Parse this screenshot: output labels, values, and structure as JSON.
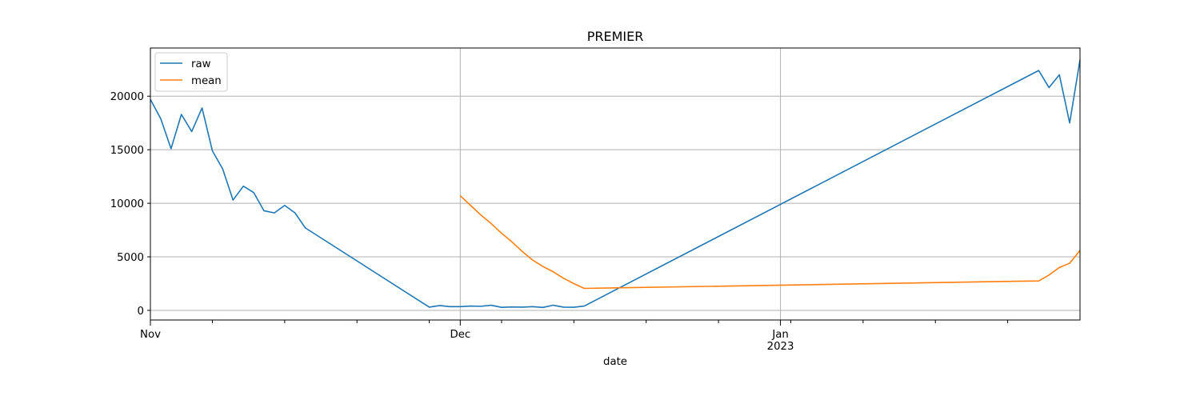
{
  "chart_data": {
    "type": "line",
    "title": "PREMIER",
    "xlabel": "date",
    "ylabel": "",
    "x_ticks_major": [
      {
        "date": "2022-11-01",
        "label": "Nov",
        "sublabel": ""
      },
      {
        "date": "2022-12-01",
        "label": "Dec",
        "sublabel": ""
      },
      {
        "date": "2023-01-01",
        "label": "Jan",
        "sublabel": "2023"
      }
    ],
    "x_ticks_minor": [
      "2022-11-07",
      "2022-11-14",
      "2022-11-21",
      "2022-11-28",
      "2022-12-05",
      "2022-12-12",
      "2022-12-19",
      "2022-12-26",
      "2023-01-02",
      "2023-01-09",
      "2023-01-16",
      "2023-01-23"
    ],
    "xlim": [
      "2022-11-01",
      "2023-01-30"
    ],
    "y_ticks": [
      0,
      5000,
      10000,
      15000,
      20000
    ],
    "y_tick_labels": [
      "0",
      "5000",
      "10000",
      "15000",
      "20000"
    ],
    "ylim": [
      -900,
      24500
    ],
    "grid": true,
    "legend": "upper-left",
    "series": [
      {
        "name": "raw",
        "color": "#1f77b4",
        "points": [
          [
            "2022-11-01",
            19700
          ],
          [
            "2022-11-02",
            17900
          ],
          [
            "2022-11-03",
            15100
          ],
          [
            "2022-11-04",
            18300
          ],
          [
            "2022-11-05",
            16700
          ],
          [
            "2022-11-06",
            18900
          ],
          [
            "2022-11-07",
            14900
          ],
          [
            "2022-11-08",
            13200
          ],
          [
            "2022-11-09",
            10300
          ],
          [
            "2022-11-10",
            11600
          ],
          [
            "2022-11-11",
            11000
          ],
          [
            "2022-11-12",
            9300
          ],
          [
            "2022-11-13",
            9100
          ],
          [
            "2022-11-14",
            9800
          ],
          [
            "2022-11-15",
            9100
          ],
          [
            "2022-11-16",
            7700
          ],
          [
            "2022-11-28",
            300
          ],
          [
            "2022-11-29",
            450
          ],
          [
            "2022-11-30",
            350
          ],
          [
            "2022-12-01",
            350
          ],
          [
            "2022-12-02",
            400
          ],
          [
            "2022-12-03",
            380
          ],
          [
            "2022-12-04",
            480
          ],
          [
            "2022-12-05",
            280
          ],
          [
            "2022-12-06",
            320
          ],
          [
            "2022-12-07",
            300
          ],
          [
            "2022-12-08",
            350
          ],
          [
            "2022-12-09",
            270
          ],
          [
            "2022-12-10",
            480
          ],
          [
            "2022-12-11",
            300
          ],
          [
            "2022-12-12",
            290
          ],
          [
            "2022-12-13",
            400
          ],
          [
            "2023-01-26",
            22400
          ],
          [
            "2023-01-27",
            20800
          ],
          [
            "2023-01-28",
            22000
          ],
          [
            "2023-01-29",
            17500
          ],
          [
            "2023-01-30",
            23400
          ]
        ]
      },
      {
        "name": "mean",
        "color": "#ff7f0e",
        "points": [
          [
            "2022-12-01",
            10700
          ],
          [
            "2022-12-02",
            9800
          ],
          [
            "2022-12-03",
            8900
          ],
          [
            "2022-12-04",
            8100
          ],
          [
            "2022-12-05",
            7200
          ],
          [
            "2022-12-06",
            6400
          ],
          [
            "2022-12-07",
            5500
          ],
          [
            "2022-12-08",
            4700
          ],
          [
            "2022-12-09",
            4100
          ],
          [
            "2022-12-10",
            3600
          ],
          [
            "2022-12-11",
            3000
          ],
          [
            "2022-12-12",
            2500
          ],
          [
            "2022-12-13",
            2050
          ],
          [
            "2023-01-26",
            2750
          ],
          [
            "2023-01-27",
            3300
          ],
          [
            "2023-01-28",
            4000
          ],
          [
            "2023-01-29",
            4400
          ],
          [
            "2023-01-30",
            5600
          ]
        ]
      }
    ]
  }
}
